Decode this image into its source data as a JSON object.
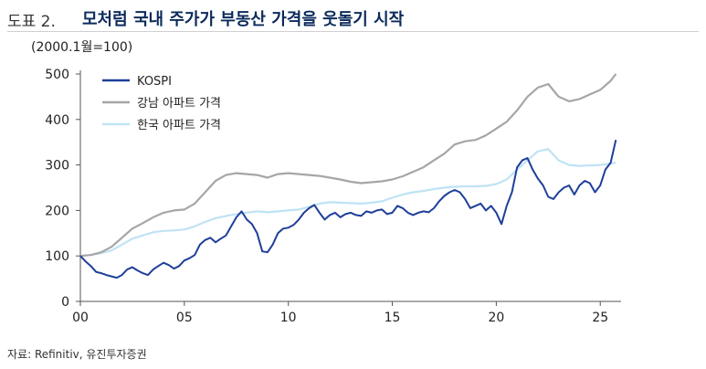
{
  "figure": {
    "number": "도표 2.",
    "title": "모처럼 국내 주가가 부동산 가격을 웃돌기 시작",
    "source": "자료: Refinitiv, 유진투자증권"
  },
  "chart_data": {
    "type": "line",
    "unit_label": "(2000.1월=100)",
    "xlim": [
      2000,
      2026
    ],
    "ylim": [
      0,
      500
    ],
    "x_ticks": [
      {
        "value": 2000,
        "label": "00"
      },
      {
        "value": 2005,
        "label": "05"
      },
      {
        "value": 2010,
        "label": "10"
      },
      {
        "value": 2015,
        "label": "15"
      },
      {
        "value": 2020,
        "label": "20"
      },
      {
        "value": 2025,
        "label": "25"
      }
    ],
    "y_ticks": [
      0,
      100,
      200,
      300,
      400,
      500
    ],
    "legend_position": "top-left",
    "series": [
      {
        "name": "KOSPI",
        "color": "#1f3f99",
        "points": [
          [
            2000,
            100
          ],
          [
            2000.25,
            88
          ],
          [
            2000.5,
            78
          ],
          [
            2000.75,
            65
          ],
          [
            2001,
            62
          ],
          [
            2001.25,
            58
          ],
          [
            2001.5,
            55
          ],
          [
            2001.75,
            52
          ],
          [
            2002,
            58
          ],
          [
            2002.25,
            70
          ],
          [
            2002.5,
            75
          ],
          [
            2002.75,
            68
          ],
          [
            2003,
            62
          ],
          [
            2003.25,
            58
          ],
          [
            2003.5,
            70
          ],
          [
            2003.75,
            78
          ],
          [
            2004,
            85
          ],
          [
            2004.25,
            80
          ],
          [
            2004.5,
            72
          ],
          [
            2004.75,
            78
          ],
          [
            2005,
            90
          ],
          [
            2005.25,
            95
          ],
          [
            2005.5,
            102
          ],
          [
            2005.75,
            125
          ],
          [
            2006,
            135
          ],
          [
            2006.25,
            140
          ],
          [
            2006.5,
            130
          ],
          [
            2006.75,
            138
          ],
          [
            2007,
            145
          ],
          [
            2007.25,
            165
          ],
          [
            2007.5,
            185
          ],
          [
            2007.75,
            198
          ],
          [
            2008,
            180
          ],
          [
            2008.25,
            170
          ],
          [
            2008.5,
            150
          ],
          [
            2008.75,
            110
          ],
          [
            2009,
            108
          ],
          [
            2009.25,
            125
          ],
          [
            2009.5,
            150
          ],
          [
            2009.75,
            160
          ],
          [
            2010,
            162
          ],
          [
            2010.25,
            168
          ],
          [
            2010.5,
            180
          ],
          [
            2010.75,
            195
          ],
          [
            2011,
            205
          ],
          [
            2011.25,
            212
          ],
          [
            2011.5,
            195
          ],
          [
            2011.75,
            180
          ],
          [
            2012,
            190
          ],
          [
            2012.25,
            195
          ],
          [
            2012.5,
            185
          ],
          [
            2012.75,
            192
          ],
          [
            2013,
            195
          ],
          [
            2013.25,
            190
          ],
          [
            2013.5,
            188
          ],
          [
            2013.75,
            198
          ],
          [
            2014,
            195
          ],
          [
            2014.25,
            200
          ],
          [
            2014.5,
            202
          ],
          [
            2014.75,
            192
          ],
          [
            2015,
            195
          ],
          [
            2015.25,
            210
          ],
          [
            2015.5,
            205
          ],
          [
            2015.75,
            195
          ],
          [
            2016,
            190
          ],
          [
            2016.25,
            195
          ],
          [
            2016.5,
            198
          ],
          [
            2016.75,
            196
          ],
          [
            2017,
            205
          ],
          [
            2017.25,
            220
          ],
          [
            2017.5,
            232
          ],
          [
            2017.75,
            240
          ],
          [
            2018,
            245
          ],
          [
            2018.25,
            240
          ],
          [
            2018.5,
            225
          ],
          [
            2018.75,
            205
          ],
          [
            2019,
            210
          ],
          [
            2019.25,
            215
          ],
          [
            2019.5,
            200
          ],
          [
            2019.75,
            210
          ],
          [
            2020,
            195
          ],
          [
            2020.25,
            170
          ],
          [
            2020.5,
            210
          ],
          [
            2020.75,
            240
          ],
          [
            2021,
            295
          ],
          [
            2021.25,
            310
          ],
          [
            2021.5,
            315
          ],
          [
            2021.75,
            290
          ],
          [
            2022,
            270
          ],
          [
            2022.25,
            255
          ],
          [
            2022.5,
            230
          ],
          [
            2022.75,
            225
          ],
          [
            2023,
            240
          ],
          [
            2023.25,
            250
          ],
          [
            2023.5,
            255
          ],
          [
            2023.75,
            235
          ],
          [
            2024,
            255
          ],
          [
            2024.25,
            265
          ],
          [
            2024.5,
            260
          ],
          [
            2024.75,
            240
          ],
          [
            2025,
            255
          ],
          [
            2025.25,
            290
          ],
          [
            2025.5,
            305
          ],
          [
            2025.75,
            355
          ]
        ]
      },
      {
        "name": "강남 아파트 가격",
        "color": "#a6a6a6",
        "points": [
          [
            2000,
            100
          ],
          [
            2000.5,
            102
          ],
          [
            2001,
            108
          ],
          [
            2001.5,
            120
          ],
          [
            2002,
            140
          ],
          [
            2002.5,
            160
          ],
          [
            2003,
            172
          ],
          [
            2003.5,
            185
          ],
          [
            2004,
            195
          ],
          [
            2004.5,
            200
          ],
          [
            2005,
            202
          ],
          [
            2005.5,
            215
          ],
          [
            2006,
            240
          ],
          [
            2006.5,
            265
          ],
          [
            2007,
            278
          ],
          [
            2007.5,
            282
          ],
          [
            2008,
            280
          ],
          [
            2008.5,
            278
          ],
          [
            2009,
            272
          ],
          [
            2009.5,
            280
          ],
          [
            2010,
            282
          ],
          [
            2010.5,
            280
          ],
          [
            2011,
            278
          ],
          [
            2011.5,
            276
          ],
          [
            2012,
            272
          ],
          [
            2012.5,
            268
          ],
          [
            2013,
            263
          ],
          [
            2013.5,
            260
          ],
          [
            2014,
            262
          ],
          [
            2014.5,
            264
          ],
          [
            2015,
            268
          ],
          [
            2015.5,
            275
          ],
          [
            2016,
            285
          ],
          [
            2016.5,
            295
          ],
          [
            2017,
            310
          ],
          [
            2017.5,
            325
          ],
          [
            2018,
            345
          ],
          [
            2018.5,
            352
          ],
          [
            2019,
            355
          ],
          [
            2019.5,
            365
          ],
          [
            2020,
            380
          ],
          [
            2020.5,
            395
          ],
          [
            2021,
            420
          ],
          [
            2021.5,
            450
          ],
          [
            2022,
            470
          ],
          [
            2022.5,
            478
          ],
          [
            2023,
            450
          ],
          [
            2023.5,
            440
          ],
          [
            2024,
            445
          ],
          [
            2024.5,
            455
          ],
          [
            2025,
            465
          ],
          [
            2025.5,
            485
          ],
          [
            2025.75,
            500
          ]
        ]
      },
      {
        "name": "한국 아파트 가격",
        "color": "#bfe3f5",
        "points": [
          [
            2000,
            100
          ],
          [
            2000.5,
            102
          ],
          [
            2001,
            106
          ],
          [
            2001.5,
            112
          ],
          [
            2002,
            125
          ],
          [
            2002.5,
            138
          ],
          [
            2003,
            145
          ],
          [
            2003.5,
            152
          ],
          [
            2004,
            155
          ],
          [
            2004.5,
            156
          ],
          [
            2005,
            158
          ],
          [
            2005.5,
            165
          ],
          [
            2006,
            175
          ],
          [
            2006.5,
            183
          ],
          [
            2007,
            188
          ],
          [
            2007.5,
            192
          ],
          [
            2008,
            195
          ],
          [
            2008.5,
            198
          ],
          [
            2009,
            196
          ],
          [
            2009.5,
            198
          ],
          [
            2010,
            200
          ],
          [
            2010.5,
            202
          ],
          [
            2011,
            208
          ],
          [
            2011.5,
            215
          ],
          [
            2012,
            218
          ],
          [
            2012.5,
            217
          ],
          [
            2013,
            216
          ],
          [
            2013.5,
            215
          ],
          [
            2014,
            217
          ],
          [
            2014.5,
            220
          ],
          [
            2015,
            228
          ],
          [
            2015.5,
            235
          ],
          [
            2016,
            240
          ],
          [
            2016.5,
            243
          ],
          [
            2017,
            247
          ],
          [
            2017.5,
            250
          ],
          [
            2018,
            252
          ],
          [
            2018.5,
            253
          ],
          [
            2019,
            253
          ],
          [
            2019.5,
            254
          ],
          [
            2020,
            258
          ],
          [
            2020.5,
            268
          ],
          [
            2021,
            290
          ],
          [
            2021.5,
            310
          ],
          [
            2022,
            330
          ],
          [
            2022.5,
            335
          ],
          [
            2023,
            310
          ],
          [
            2023.5,
            300
          ],
          [
            2024,
            298
          ],
          [
            2024.5,
            299
          ],
          [
            2025,
            300
          ],
          [
            2025.5,
            303
          ],
          [
            2025.75,
            305
          ]
        ]
      }
    ]
  }
}
